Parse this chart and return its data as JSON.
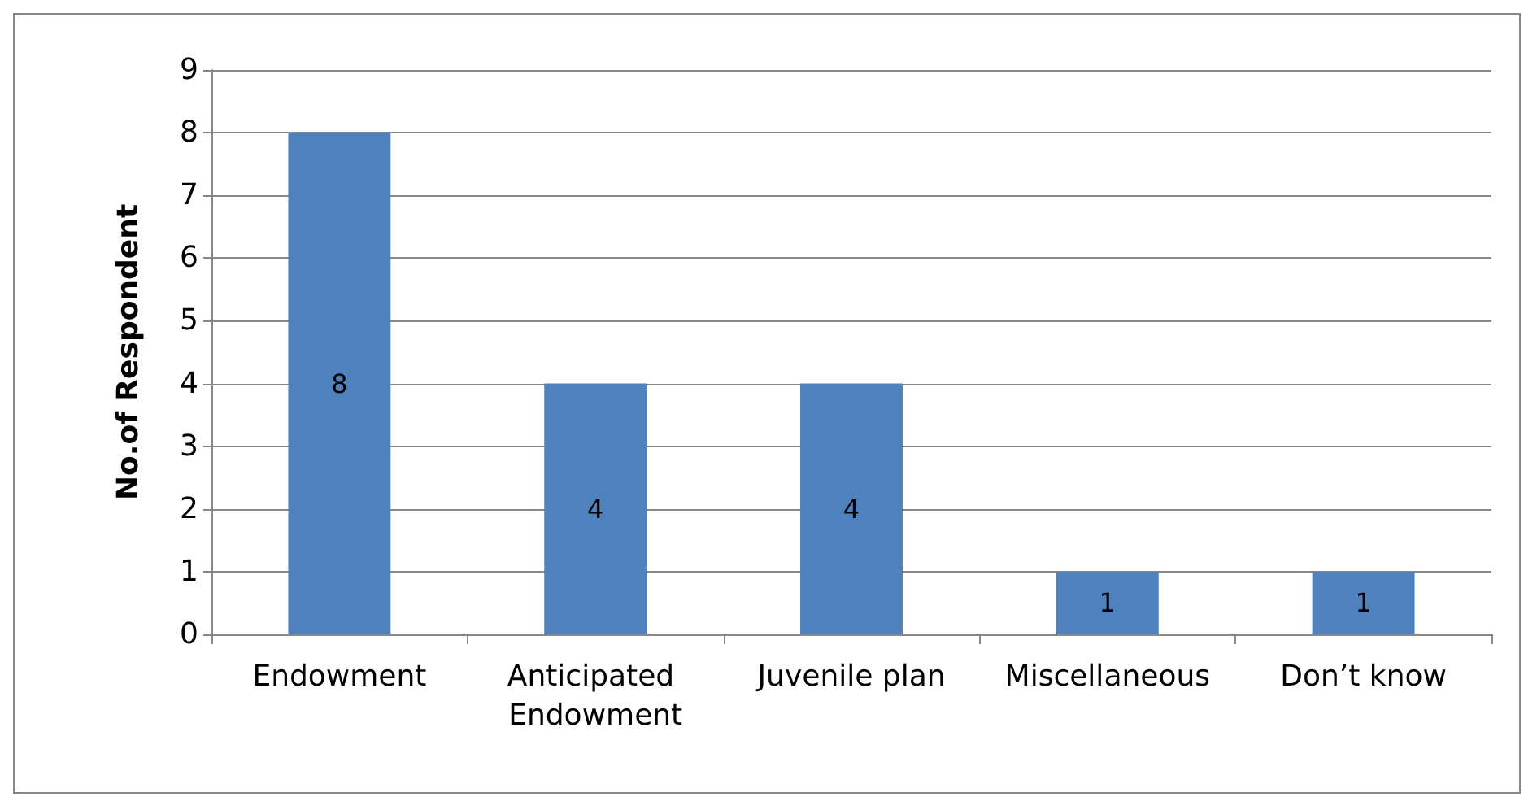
{
  "chart_data": {
    "type": "bar",
    "ylabel": "No.of Respondent",
    "categories": [
      "Endowment",
      "Anticipated Endowment",
      "Juvenile plan",
      "Miscellaneous",
      "Don’t know"
    ],
    "values": [
      8,
      4,
      4,
      1,
      1
    ],
    "color": "#4f81bd",
    "ylim": [
      0,
      9
    ],
    "yticks": [
      0,
      1,
      2,
      3,
      4,
      5,
      6,
      7,
      8,
      9
    ],
    "grid": "y",
    "data_labels": true
  }
}
